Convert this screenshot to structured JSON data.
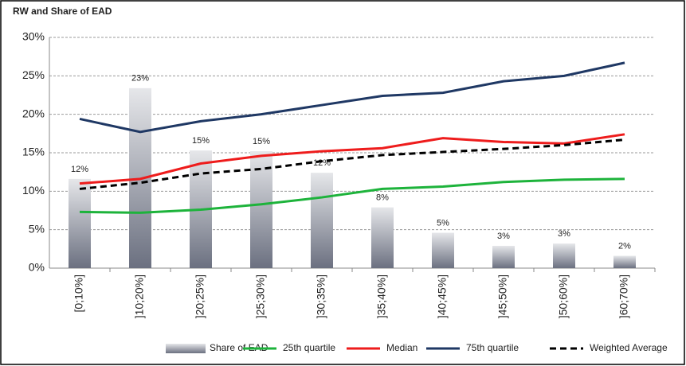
{
  "chart_data": {
    "type": "combo",
    "title": "RW and Share of EAD",
    "categories": [
      "[0;10%]",
      "]10;20%]",
      "]20;25%]",
      "]25;30%]",
      "]30;35%]",
      "]35;40%]",
      "]40;45%]",
      "]45;50%]",
      "]50;60%]",
      "]60;70%]"
    ],
    "ylim": [
      0,
      30
    ],
    "yticks": [
      {
        "value": 0,
        "label": "0%"
      },
      {
        "value": 5,
        "label": "5%"
      },
      {
        "value": 10,
        "label": "10%"
      },
      {
        "value": 15,
        "label": "15%"
      },
      {
        "value": 20,
        "label": "20%"
      },
      {
        "value": 25,
        "label": "25%"
      },
      {
        "value": 30,
        "label": "30%"
      }
    ],
    "grid": true,
    "series": [
      {
        "name": "Share of EAD",
        "type": "bar",
        "color": "#8a8e99",
        "values": [
          11.6,
          23.4,
          15.3,
          15.2,
          12.4,
          7.9,
          4.6,
          2.9,
          3.2,
          1.6
        ],
        "value_labels": [
          "12%",
          "23%",
          "15%",
          "15%",
          "12%",
          "8%",
          "5%",
          "3%",
          "3%",
          "2%"
        ]
      },
      {
        "name": "25th quartile",
        "type": "line",
        "color": "#1db33b",
        "values": [
          7.3,
          7.2,
          7.6,
          8.3,
          9.2,
          10.3,
          10.6,
          11.2,
          11.5,
          11.6
        ]
      },
      {
        "name": "Median",
        "type": "line",
        "color": "#ee1c1c",
        "values": [
          11.0,
          11.6,
          13.6,
          14.6,
          15.2,
          15.6,
          16.9,
          16.4,
          16.2,
          17.4
        ]
      },
      {
        "name": "75th quartile",
        "type": "line",
        "color": "#1f3864",
        "values": [
          19.4,
          17.7,
          19.1,
          20.0,
          21.2,
          22.4,
          22.8,
          24.3,
          25.0,
          26.7
        ]
      },
      {
        "name": "Weighted Average",
        "type": "line",
        "dashed": true,
        "color": "#000000",
        "values": [
          10.3,
          11.1,
          12.3,
          12.9,
          13.9,
          14.7,
          15.1,
          15.5,
          16.0,
          16.7
        ]
      }
    ]
  }
}
